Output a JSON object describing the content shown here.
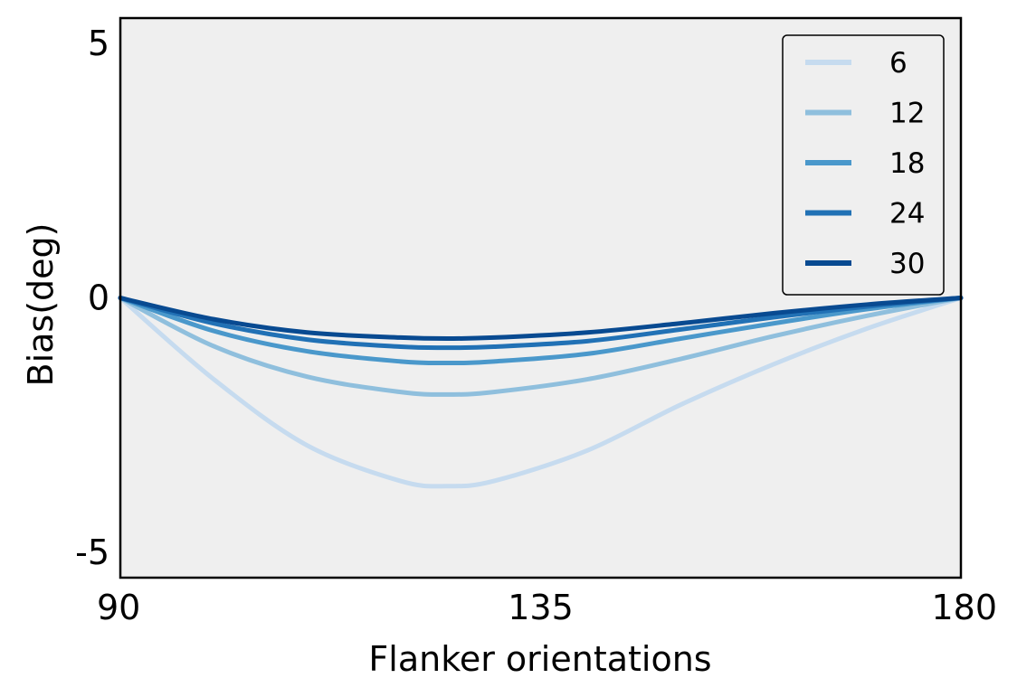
{
  "chart_data": {
    "type": "line",
    "title": "",
    "xlabel": "Flanker orientations",
    "ylabel": "Bias(deg)",
    "xlim": [
      90,
      180
    ],
    "ylim": [
      -5.5,
      5.5
    ],
    "xticks": [
      90,
      135,
      180
    ],
    "xtick_labels": [
      "90",
      "135",
      "180"
    ],
    "yticks": [
      5,
      0,
      -5
    ],
    "ytick_labels": [
      "5",
      "0",
      "-5"
    ],
    "grid": false,
    "background": "#efefef",
    "legend_position": "top-right",
    "x": [
      90,
      100,
      110,
      120,
      125,
      130,
      140,
      150,
      160,
      170,
      180
    ],
    "series": [
      {
        "name": "6",
        "color": "#c6dbef",
        "values": [
          0,
          -1.6,
          -2.9,
          -3.6,
          -3.7,
          -3.6,
          -3.0,
          -2.1,
          -1.3,
          -0.6,
          0
        ]
      },
      {
        "name": "12",
        "color": "#8fbfdd",
        "values": [
          0,
          -0.95,
          -1.55,
          -1.85,
          -1.9,
          -1.85,
          -1.6,
          -1.2,
          -0.75,
          -0.35,
          0
        ]
      },
      {
        "name": "18",
        "color": "#4a98cb",
        "values": [
          0,
          -0.65,
          -1.05,
          -1.25,
          -1.28,
          -1.25,
          -1.1,
          -0.8,
          -0.5,
          -0.22,
          0
        ]
      },
      {
        "name": "24",
        "color": "#2171b5",
        "values": [
          0,
          -0.5,
          -0.82,
          -0.96,
          -0.98,
          -0.96,
          -0.85,
          -0.62,
          -0.38,
          -0.17,
          0
        ]
      },
      {
        "name": "30",
        "color": "#084a91",
        "values": [
          0,
          -0.42,
          -0.68,
          -0.78,
          -0.8,
          -0.78,
          -0.68,
          -0.5,
          -0.3,
          -0.13,
          0
        ]
      }
    ]
  }
}
